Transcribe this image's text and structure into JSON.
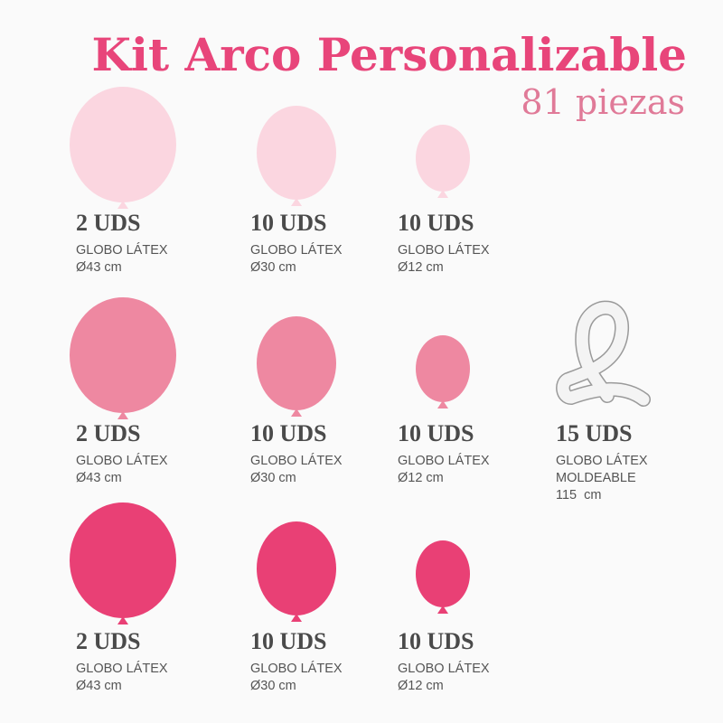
{
  "title": "Kit Arco Personalizable",
  "subtitle": "81 piezas",
  "rows": [
    {
      "items": [
        {
          "quantity": "2 UDS",
          "type": "GLOBO LÁTEX",
          "size": "Ø43 cm"
        },
        {
          "quantity": "10 UDS",
          "type": "GLOBO LÁTEX",
          "size": "Ø30 cm"
        },
        {
          "quantity": "10 UDS",
          "type": "GLOBO LÁTEX",
          "size": "Ø12 cm"
        }
      ]
    },
    {
      "items": [
        {
          "quantity": "2 UDS",
          "type": "GLOBO LÁTEX",
          "size": "Ø43 cm"
        },
        {
          "quantity": "10 UDS",
          "type": "GLOBO LÁTEX",
          "size": "Ø30 cm"
        },
        {
          "quantity": "10 UDS",
          "type": "GLOBO LÁTEX",
          "size": "Ø12 cm"
        }
      ]
    },
    {
      "items": [
        {
          "quantity": "2 UDS",
          "type": "GLOBO LÁTEX",
          "size": "Ø43 cm"
        },
        {
          "quantity": "10 UDS",
          "type": "GLOBO LÁTEX",
          "size": "Ø30 cm"
        },
        {
          "quantity": "10 UDS",
          "type": "GLOBO LÁTEX",
          "size": "Ø12 cm"
        }
      ]
    }
  ],
  "modeling": {
    "quantity": "15 UDS",
    "type": "GLOBO LÁTEX",
    "subtype": "MOLDEABLE",
    "size": "115  cm"
  }
}
